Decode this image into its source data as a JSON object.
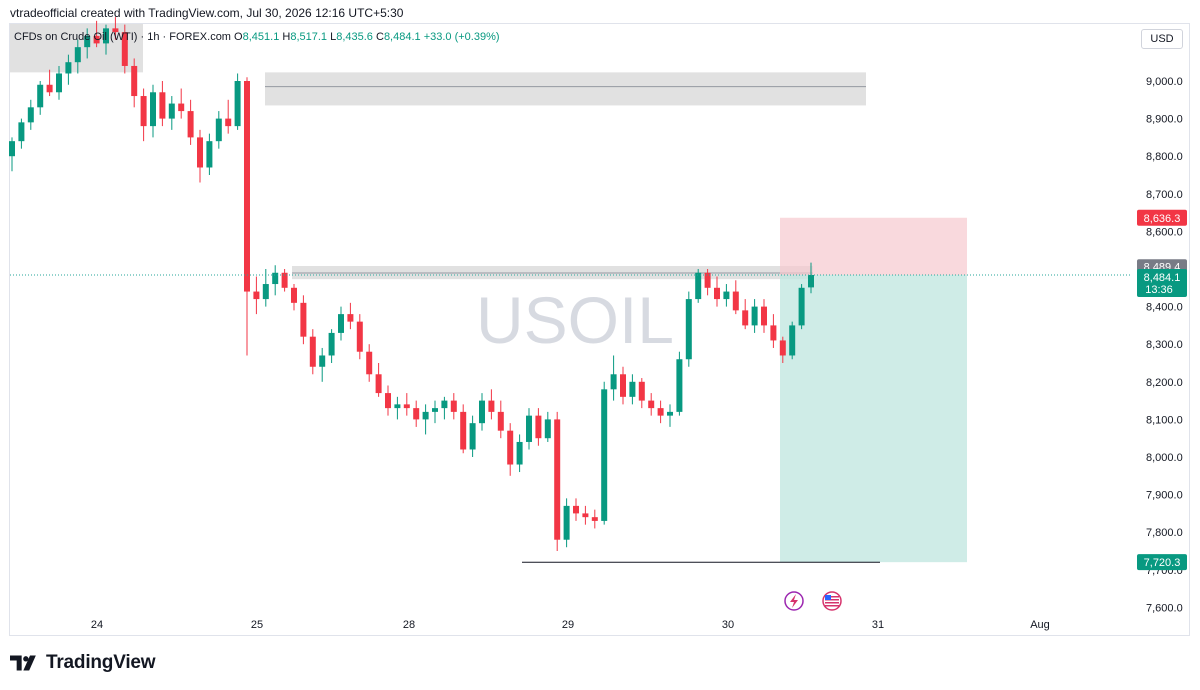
{
  "header": {
    "credit": "vtradeofficial created with TradingView.com, Jul 30, 2026 12:16 UTC+5:30"
  },
  "legend": {
    "symbol": "CFDs on Crude Oil (WTI) · 1h · FOREX.com",
    "o_key": "O",
    "o_val": "8,451.1",
    "h_key": "H",
    "h_val": "8,517.1",
    "l_key": "L",
    "l_val": "8,435.6",
    "c_key": "C",
    "c_val": "8,484.1",
    "change": "+33.0 (+0.39%)"
  },
  "currency": "USD",
  "watermark": "USOIL",
  "footer": {
    "brand": "TradingView"
  },
  "colors": {
    "up": "#089981",
    "down": "#f23645",
    "zone": "#d9d9d9",
    "stop": "#f7c9ce",
    "target": "#bfe6df",
    "price_line": "#26a69a"
  },
  "icons": [
    "lightning-icon",
    "us-flag-icon"
  ],
  "chart_data": {
    "type": "candlestick",
    "y_axis_ticks": [
      "9,000.0",
      "8,900.0",
      "8,800.0",
      "8,700.0",
      "8,600.0",
      "8,500.0",
      "8,400.0",
      "8,300.0",
      "8,200.0",
      "8,100.0",
      "8,000.0",
      "7,900.0",
      "7,800.0",
      "7,700.0",
      "7,600.0"
    ],
    "y_tick_values": [
      9000,
      8900,
      8800,
      8700,
      8600,
      8500,
      8400,
      8300,
      8200,
      8100,
      8000,
      7900,
      7800,
      7700,
      7600
    ],
    "x_axis_labels": [
      "24",
      "25",
      "28",
      "29",
      "30",
      "31",
      "Aug"
    ],
    "ylim": [
      7580,
      9180
    ],
    "price_labels": {
      "stop": "8,636.3",
      "zone_top": "8,489.4",
      "last": "8,484.1",
      "countdown": "13:36",
      "target": "7,720.3"
    },
    "levels": {
      "stop": 8636.3,
      "last": 8484.1,
      "target": 7720.3,
      "low_line": 7720
    },
    "zones": [
      {
        "name": "supply-zone-upper",
        "top": 9023,
        "bottom": 8935,
        "mid": 8985
      },
      {
        "name": "supply-zone-mid",
        "top": 8508,
        "bottom": 8473,
        "mid": 8489.4
      },
      {
        "name": "chart-top-zone",
        "top": 9180,
        "bottom": 9023
      }
    ],
    "position": {
      "entry": 8484.1,
      "stop": 8636.3,
      "target": 7720.3
    },
    "candles": [
      [
        8800,
        8850,
        8760,
        8840
      ],
      [
        8840,
        8900,
        8820,
        8890
      ],
      [
        8890,
        8950,
        8870,
        8930
      ],
      [
        8930,
        9000,
        8910,
        8990
      ],
      [
        8990,
        9030,
        8960,
        8970
      ],
      [
        8970,
        9040,
        8950,
        9020
      ],
      [
        9020,
        9070,
        8990,
        9050
      ],
      [
        9050,
        9110,
        9020,
        9090
      ],
      [
        9090,
        9140,
        9060,
        9120
      ],
      [
        9120,
        9160,
        9090,
        9100
      ],
      [
        9100,
        9150,
        9070,
        9140
      ],
      [
        9140,
        9170,
        9110,
        9130
      ],
      [
        9130,
        9150,
        9020,
        9040
      ],
      [
        9040,
        9060,
        8930,
        8960
      ],
      [
        8960,
        8980,
        8840,
        8880
      ],
      [
        8880,
        8990,
        8850,
        8970
      ],
      [
        8970,
        9000,
        8880,
        8900
      ],
      [
        8900,
        8960,
        8870,
        8940
      ],
      [
        8940,
        8980,
        8900,
        8920
      ],
      [
        8920,
        8950,
        8830,
        8850
      ],
      [
        8850,
        8870,
        8730,
        8770
      ],
      [
        8770,
        8860,
        8750,
        8840
      ],
      [
        8840,
        8920,
        8820,
        8900
      ],
      [
        8900,
        8950,
        8860,
        8880
      ],
      [
        8880,
        9020,
        8870,
        9000
      ],
      [
        9000,
        9010,
        8270,
        8440
      ],
      [
        8440,
        8480,
        8380,
        8420
      ],
      [
        8420,
        8500,
        8400,
        8460
      ],
      [
        8460,
        8510,
        8430,
        8490
      ],
      [
        8490,
        8500,
        8440,
        8450
      ],
      [
        8450,
        8460,
        8390,
        8410
      ],
      [
        8410,
        8430,
        8300,
        8320
      ],
      [
        8320,
        8340,
        8220,
        8240
      ],
      [
        8240,
        8290,
        8200,
        8270
      ],
      [
        8270,
        8340,
        8250,
        8330
      ],
      [
        8330,
        8400,
        8310,
        8380
      ],
      [
        8380,
        8410,
        8340,
        8360
      ],
      [
        8360,
        8380,
        8260,
        8280
      ],
      [
        8280,
        8300,
        8200,
        8220
      ],
      [
        8220,
        8250,
        8160,
        8170
      ],
      [
        8170,
        8190,
        8110,
        8130
      ],
      [
        8130,
        8160,
        8100,
        8140
      ],
      [
        8140,
        8170,
        8110,
        8130
      ],
      [
        8130,
        8150,
        8080,
        8100
      ],
      [
        8100,
        8140,
        8060,
        8120
      ],
      [
        8120,
        8150,
        8090,
        8130
      ],
      [
        8130,
        8160,
        8100,
        8150
      ],
      [
        8150,
        8170,
        8100,
        8120
      ],
      [
        8120,
        8140,
        8010,
        8020
      ],
      [
        8020,
        8110,
        8000,
        8090
      ],
      [
        8090,
        8170,
        8070,
        8150
      ],
      [
        8150,
        8180,
        8100,
        8120
      ],
      [
        8120,
        8150,
        8050,
        8070
      ],
      [
        8070,
        8090,
        7950,
        7980
      ],
      [
        7980,
        8060,
        7960,
        8040
      ],
      [
        8040,
        8130,
        8020,
        8110
      ],
      [
        8110,
        8130,
        8030,
        8050
      ],
      [
        8050,
        8120,
        8040,
        8100
      ],
      [
        8100,
        8120,
        7750,
        7780
      ],
      [
        7780,
        7890,
        7760,
        7870
      ],
      [
        7870,
        7890,
        7830,
        7850
      ],
      [
        7850,
        7870,
        7820,
        7840
      ],
      [
        7840,
        7860,
        7810,
        7830
      ],
      [
        7830,
        8200,
        7820,
        8180
      ],
      [
        8180,
        8270,
        8150,
        8220
      ],
      [
        8220,
        8240,
        8140,
        8160
      ],
      [
        8160,
        8220,
        8140,
        8200
      ],
      [
        8200,
        8210,
        8130,
        8150
      ],
      [
        8150,
        8170,
        8110,
        8130
      ],
      [
        8130,
        8150,
        8090,
        8110
      ],
      [
        8110,
        8140,
        8080,
        8120
      ],
      [
        8120,
        8280,
        8110,
        8260
      ],
      [
        8260,
        8440,
        8240,
        8420
      ],
      [
        8420,
        8500,
        8410,
        8490
      ],
      [
        8490,
        8500,
        8430,
        8450
      ],
      [
        8450,
        8480,
        8400,
        8420
      ],
      [
        8420,
        8460,
        8400,
        8440
      ],
      [
        8440,
        8470,
        8380,
        8390
      ],
      [
        8390,
        8420,
        8340,
        8350
      ],
      [
        8350,
        8420,
        8330,
        8400
      ],
      [
        8400,
        8420,
        8330,
        8350
      ],
      [
        8350,
        8380,
        8290,
        8310
      ],
      [
        8310,
        8320,
        8250,
        8270
      ],
      [
        8270,
        8360,
        8260,
        8350
      ],
      [
        8350,
        8460,
        8340,
        8450
      ],
      [
        8451.1,
        8517.1,
        8435.6,
        8484.1
      ]
    ]
  }
}
